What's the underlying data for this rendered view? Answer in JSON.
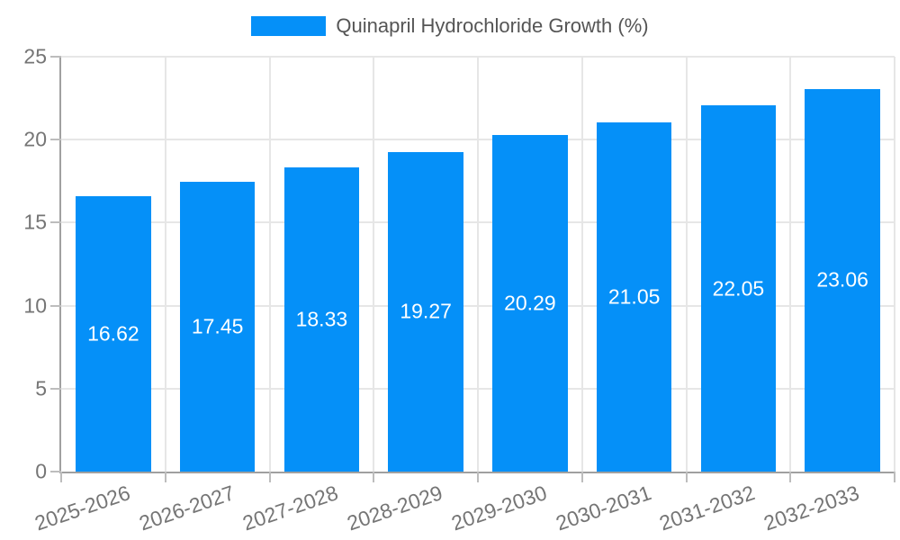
{
  "chart_data": {
    "type": "bar",
    "title": "",
    "legend": {
      "label": "Quinapril Hydrochloride Growth (%)",
      "position": "top-center"
    },
    "categories": [
      "2025-2026",
      "2026-2027",
      "2027-2028",
      "2028-2029",
      "2029-2030",
      "2030-2031",
      "2031-2032",
      "2032-2033"
    ],
    "values": [
      16.62,
      17.45,
      18.33,
      19.27,
      20.29,
      21.05,
      22.05,
      23.06
    ],
    "value_labels": [
      "16.62",
      "17.45",
      "18.33",
      "19.27",
      "20.29",
      "21.05",
      "22.05",
      "23.06"
    ],
    "xlabel": "",
    "ylabel": "",
    "ylim": [
      0,
      25
    ],
    "yticks": [
      0,
      5,
      10,
      15,
      20,
      25
    ],
    "grid": true,
    "x_label_rotation_deg": -19,
    "colors": {
      "bar": "#0590F8",
      "value_label": "#FFFFFF",
      "grid": "#E6E6E6",
      "axis": "#A0A0A0",
      "tick": "#BDBDBD",
      "tick_label": "#757575",
      "legend_text": "#555555",
      "background": "#FFFFFF"
    }
  }
}
